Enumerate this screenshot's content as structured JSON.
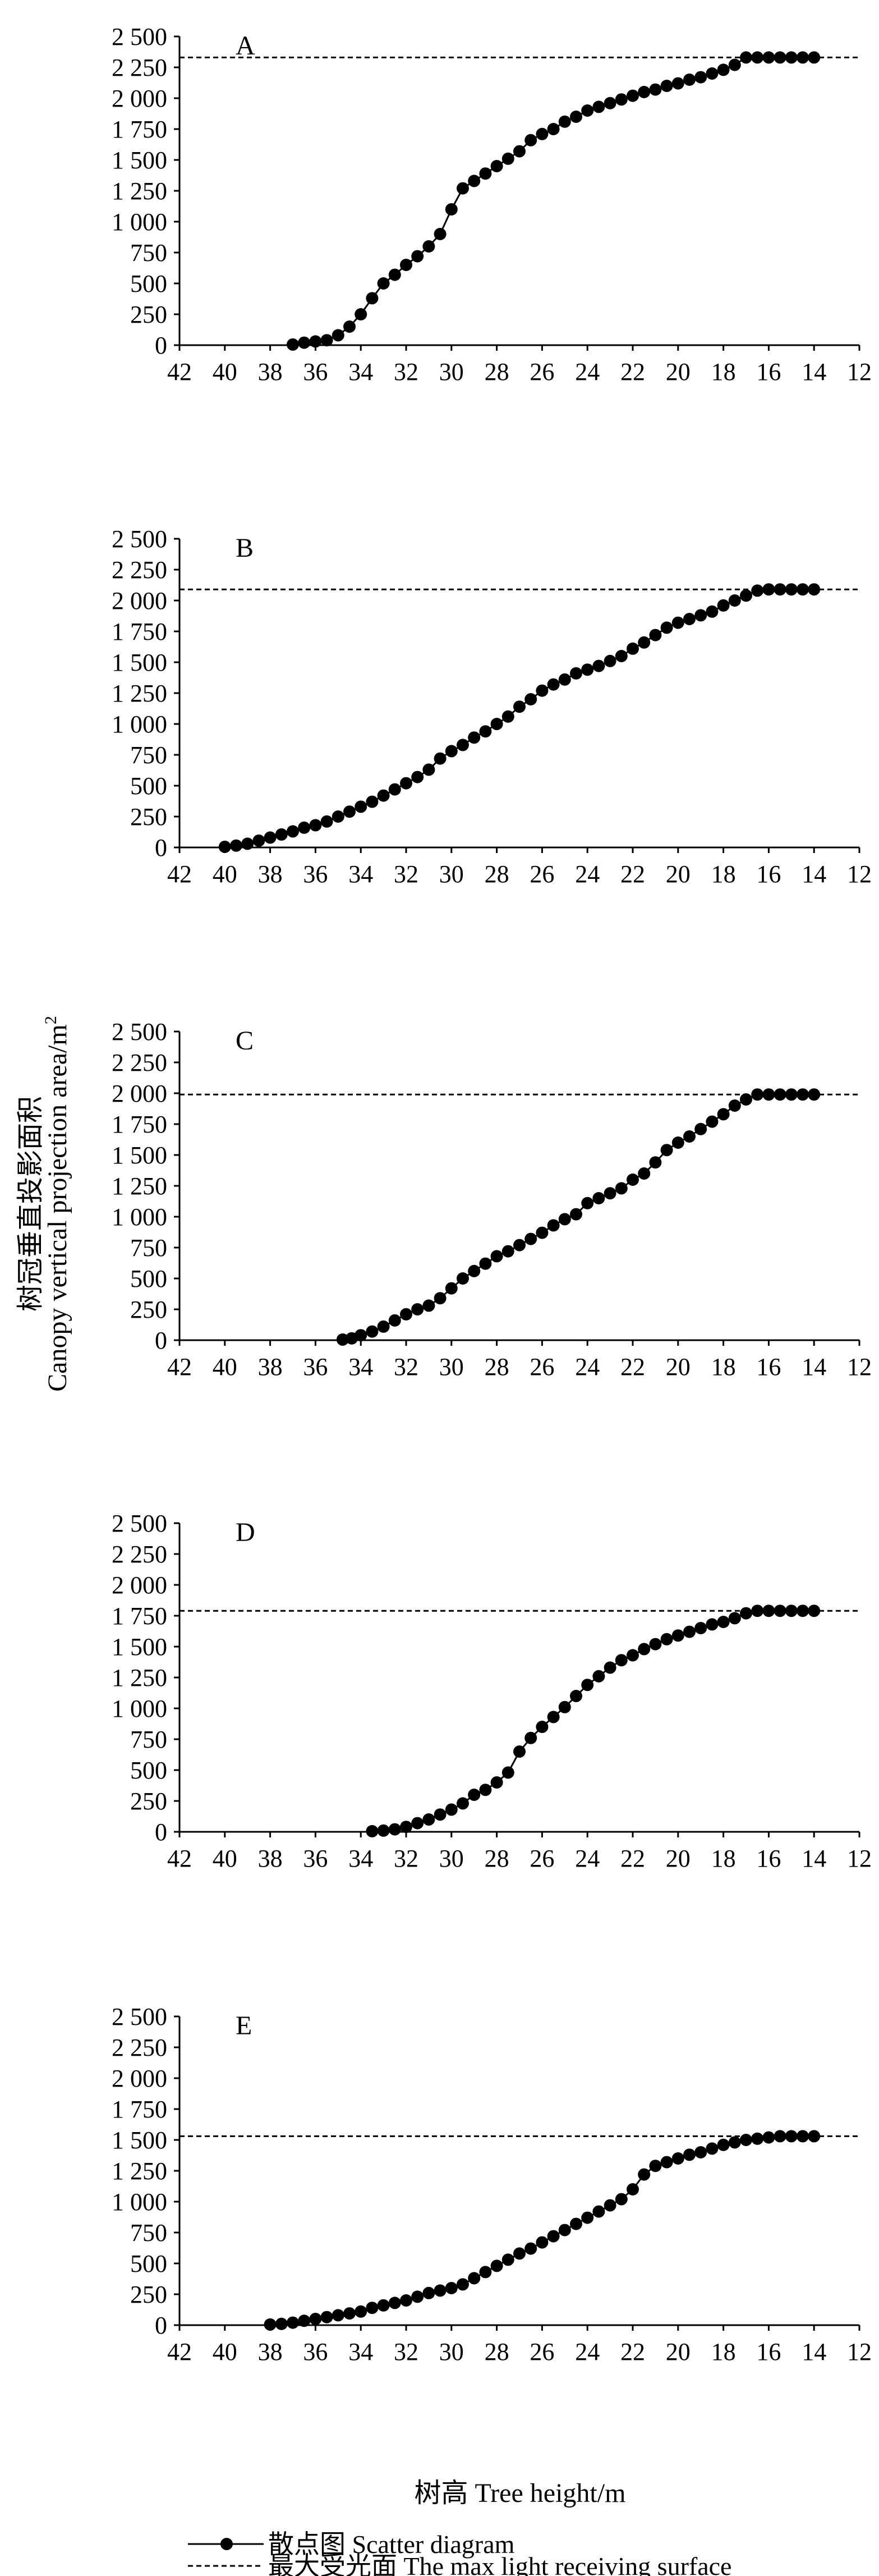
{
  "chart_data": [
    {
      "type": "scatter",
      "panel": "A",
      "xlim": [
        42,
        12
      ],
      "ylim": [
        0,
        2500
      ],
      "x_ticks": [
        "42",
        "40",
        "38",
        "36",
        "34",
        "32",
        "30",
        "28",
        "26",
        "24",
        "22",
        "20",
        "18",
        "16",
        "14",
        "12"
      ],
      "y_ticks": [
        "0",
        "250",
        "500",
        "750",
        "1 000",
        "1 250",
        "1 500",
        "1 750",
        "2 000",
        "2 250",
        "2 500"
      ],
      "max_light_surface": 2330,
      "x": [
        37,
        36.5,
        36,
        35.5,
        35,
        34.5,
        34,
        33.5,
        33,
        32.5,
        32,
        31.5,
        31,
        30.5,
        30,
        29.5,
        29,
        28.5,
        28,
        27.5,
        27,
        26.5,
        26,
        25.5,
        25,
        24.5,
        24,
        23.5,
        23,
        22.5,
        22,
        21.5,
        21,
        20.5,
        20,
        19.5,
        19,
        18.5,
        18,
        17.5,
        17,
        16.5,
        16,
        15.5,
        15,
        14.5,
        14
      ],
      "y": [
        5,
        20,
        30,
        40,
        80,
        150,
        250,
        380,
        500,
        570,
        650,
        720,
        800,
        900,
        1100,
        1270,
        1330,
        1390,
        1450,
        1510,
        1570,
        1660,
        1710,
        1750,
        1810,
        1850,
        1900,
        1930,
        1960,
        1990,
        2020,
        2050,
        2070,
        2100,
        2120,
        2150,
        2170,
        2200,
        2230,
        2270,
        2330,
        2330,
        2330,
        2330,
        2330,
        2330,
        2330
      ]
    },
    {
      "type": "scatter",
      "panel": "B",
      "xlim": [
        42,
        12
      ],
      "ylim": [
        0,
        2500
      ],
      "x_ticks": [
        "42",
        "40",
        "38",
        "36",
        "34",
        "32",
        "30",
        "28",
        "26",
        "24",
        "22",
        "20",
        "18",
        "16",
        "14",
        "12"
      ],
      "y_ticks": [
        "0",
        "250",
        "500",
        "750",
        "1 000",
        "1 250",
        "1 500",
        "1 750",
        "2 000",
        "2 250",
        "2 500"
      ],
      "max_light_surface": 2090,
      "x": [
        40,
        39.5,
        39,
        38.5,
        38,
        37.5,
        37,
        36.5,
        36,
        35.5,
        35,
        34.5,
        34,
        33.5,
        33,
        32.5,
        32,
        31.5,
        31,
        30.5,
        30,
        29.5,
        29,
        28.5,
        28,
        27.5,
        27,
        26.5,
        26,
        25.5,
        25,
        24.5,
        24,
        23.5,
        23,
        22.5,
        22,
        21.5,
        21,
        20.5,
        20,
        19.5,
        19,
        18.5,
        18,
        17.5,
        17,
        16.5,
        16,
        15.5,
        15,
        14.5,
        14
      ],
      "y": [
        5,
        15,
        30,
        55,
        80,
        105,
        130,
        160,
        180,
        210,
        250,
        290,
        330,
        370,
        420,
        470,
        520,
        570,
        630,
        720,
        780,
        830,
        890,
        940,
        1000,
        1060,
        1140,
        1200,
        1270,
        1320,
        1360,
        1410,
        1440,
        1470,
        1510,
        1550,
        1610,
        1660,
        1720,
        1780,
        1820,
        1850,
        1880,
        1910,
        1960,
        2000,
        2040,
        2080,
        2090,
        2090,
        2090,
        2090,
        2090
      ]
    },
    {
      "type": "scatter",
      "panel": "C",
      "xlim": [
        42,
        12
      ],
      "ylim": [
        0,
        2500
      ],
      "x_ticks": [
        "42",
        "40",
        "38",
        "36",
        "34",
        "32",
        "30",
        "28",
        "26",
        "24",
        "22",
        "20",
        "18",
        "16",
        "14",
        "12"
      ],
      "y_ticks": [
        "0",
        "250",
        "500",
        "750",
        "1 000",
        "1 250",
        "1 500",
        "1 750",
        "2 000",
        "2 250",
        "2 500"
      ],
      "max_light_surface": 1990,
      "x": [
        34.8,
        34.4,
        34,
        33.5,
        33,
        32.5,
        32,
        31.5,
        31,
        30.5,
        30,
        29.5,
        29,
        28.5,
        28,
        27.5,
        27,
        26.5,
        26,
        25.5,
        25,
        24.5,
        24,
        23.5,
        23,
        22.5,
        22,
        21.5,
        21,
        20.5,
        20,
        19.5,
        19,
        18.5,
        18,
        17.5,
        17,
        16.5,
        16,
        15.5,
        15,
        14.5,
        14
      ],
      "y": [
        5,
        15,
        40,
        70,
        110,
        160,
        210,
        250,
        280,
        340,
        420,
        500,
        560,
        620,
        680,
        720,
        770,
        820,
        870,
        930,
        980,
        1020,
        1110,
        1150,
        1190,
        1230,
        1300,
        1350,
        1440,
        1540,
        1600,
        1650,
        1710,
        1770,
        1830,
        1900,
        1950,
        1990,
        1990,
        1990,
        1990,
        1990,
        1990
      ]
    },
    {
      "type": "scatter",
      "panel": "D",
      "xlim": [
        42,
        12
      ],
      "ylim": [
        0,
        2500
      ],
      "x_ticks": [
        "42",
        "40",
        "38",
        "36",
        "34",
        "32",
        "30",
        "28",
        "26",
        "24",
        "22",
        "20",
        "18",
        "16",
        "14",
        "12"
      ],
      "y_ticks": [
        "0",
        "250",
        "500",
        "750",
        "1 000",
        "1 250",
        "1 500",
        "1 750",
        "2 000",
        "2 250",
        "2 500"
      ],
      "max_light_surface": 1790,
      "x": [
        33.5,
        33,
        32.5,
        32,
        31.5,
        31,
        30.5,
        30,
        29.5,
        29,
        28.5,
        28,
        27.5,
        27,
        26.5,
        26,
        25.5,
        25,
        24.5,
        24,
        23.5,
        23,
        22.5,
        22,
        21.5,
        21,
        20.5,
        20,
        19.5,
        19,
        18.5,
        18,
        17.5,
        17,
        16.5,
        16,
        15.5,
        15,
        14.5,
        14
      ],
      "y": [
        5,
        10,
        20,
        40,
        70,
        100,
        140,
        180,
        230,
        300,
        340,
        400,
        480,
        650,
        760,
        850,
        930,
        1010,
        1100,
        1190,
        1260,
        1330,
        1390,
        1430,
        1480,
        1520,
        1560,
        1590,
        1620,
        1650,
        1680,
        1700,
        1730,
        1770,
        1790,
        1790,
        1790,
        1790,
        1790,
        1790
      ]
    },
    {
      "type": "scatter",
      "panel": "E",
      "xlim": [
        42,
        12
      ],
      "ylim": [
        0,
        2500
      ],
      "x_ticks": [
        "42",
        "40",
        "38",
        "36",
        "34",
        "32",
        "30",
        "28",
        "26",
        "24",
        "22",
        "20",
        "18",
        "16",
        "14",
        "12"
      ],
      "y_ticks": [
        "0",
        "250",
        "500",
        "750",
        "1 000",
        "1 250",
        "1 500",
        "1 750",
        "2 000",
        "2 250",
        "2 500"
      ],
      "max_light_surface": 1530,
      "x": [
        38,
        37.5,
        37,
        36.5,
        36,
        35.5,
        35,
        34.5,
        34,
        33.5,
        33,
        32.5,
        32,
        31.5,
        31,
        30.5,
        30,
        29.5,
        29,
        28.5,
        28,
        27.5,
        27,
        26.5,
        26,
        25.5,
        25,
        24.5,
        24,
        23.5,
        23,
        22.5,
        22,
        21.5,
        21,
        20.5,
        20,
        19.5,
        19,
        18.5,
        18,
        17.5,
        17,
        16.5,
        16,
        15.5,
        15,
        14.5,
        14
      ],
      "y": [
        5,
        10,
        20,
        35,
        50,
        65,
        80,
        95,
        110,
        140,
        160,
        180,
        200,
        230,
        260,
        280,
        300,
        330,
        380,
        430,
        480,
        530,
        580,
        620,
        670,
        720,
        770,
        820,
        870,
        920,
        970,
        1020,
        1100,
        1220,
        1290,
        1320,
        1350,
        1380,
        1400,
        1430,
        1460,
        1480,
        1500,
        1510,
        1520,
        1530,
        1530,
        1530,
        1530
      ]
    }
  ],
  "axes": {
    "ylabel_cn": "树冠垂直投影面积",
    "ylabel_en": "Canopy vertical projection area/m",
    "ylabel_superscript": "2",
    "xlabel": "树高 Tree height/m"
  },
  "legend": {
    "scatter_label": "散点图 Scatter diagram",
    "line_label": "最大受光面 The max light receiving surface"
  }
}
